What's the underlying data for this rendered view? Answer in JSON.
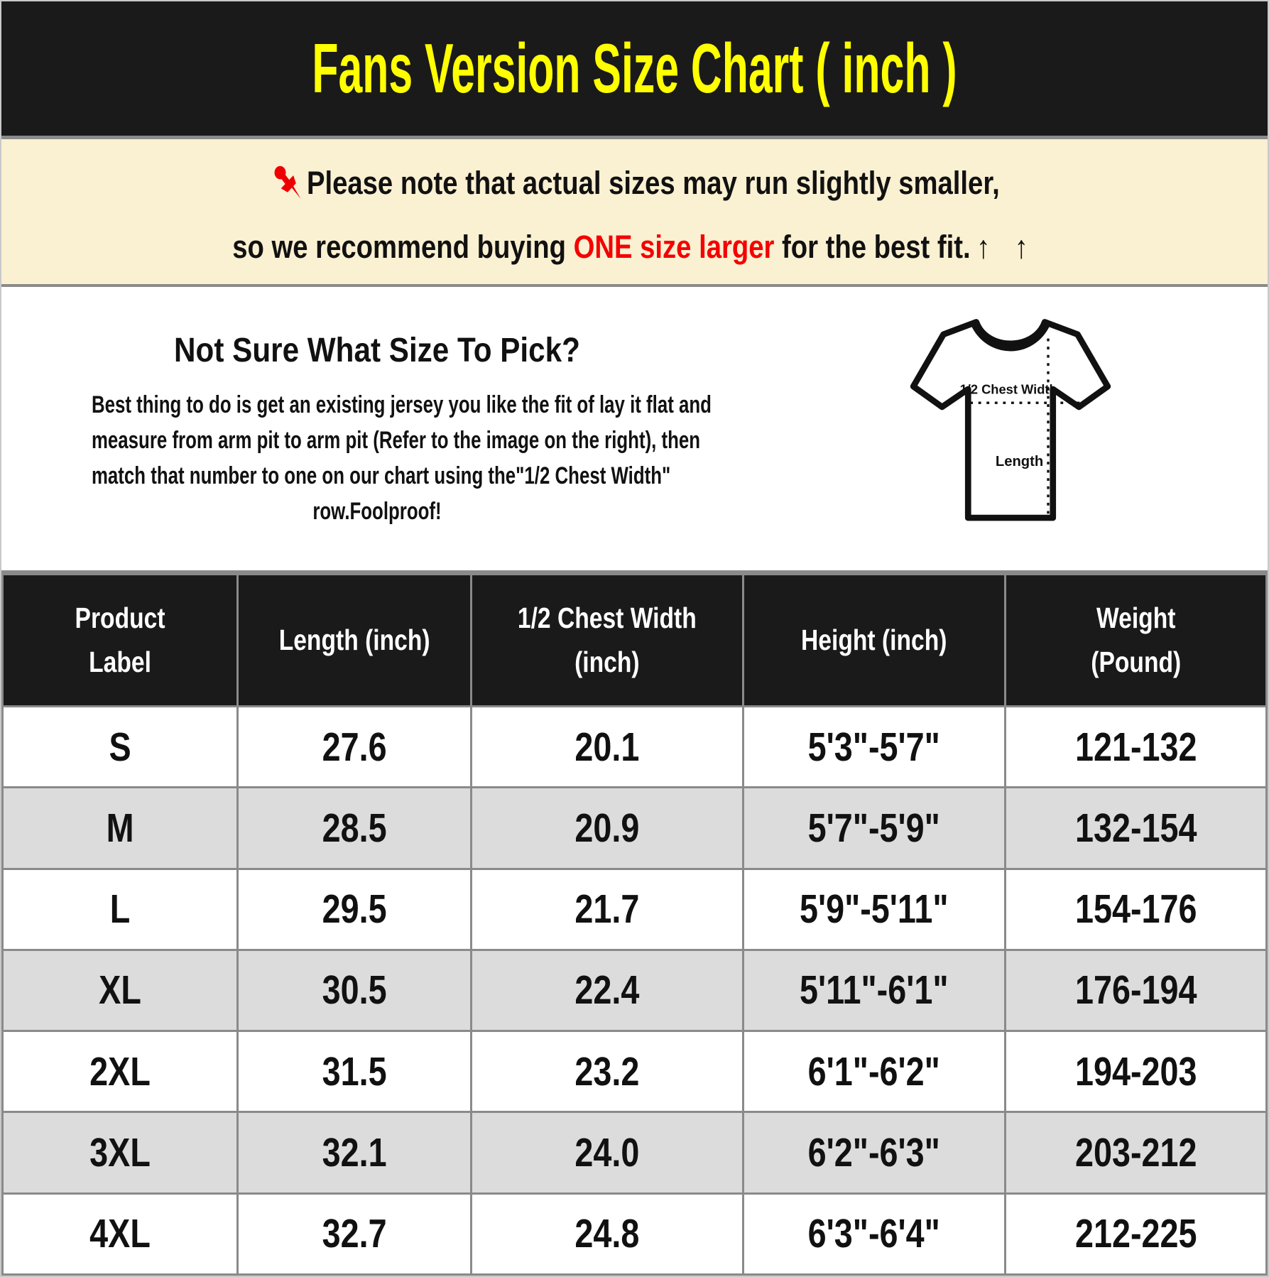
{
  "page": {
    "title": "Fans Version Size Chart ( inch )"
  },
  "colors": {
    "title_text": "#FFFF00",
    "title_bg": "#1A1A1A",
    "note_bg": "#FAF0D2",
    "highlight_red": "#F40000",
    "alt_row_gray": "#DCDCDC",
    "grid_gray": "#8A8A8A"
  },
  "note": {
    "pin_icon": "pushpin-icon",
    "line1": "Please note that actual sizes may run slightly smaller,",
    "line2_prefix": "so we recommend buying ",
    "line2_highlight": "ONE size larger",
    "line2_suffix": " for the best fit.",
    "arrows": "↑ ↑"
  },
  "guide": {
    "heading": "Not Sure What Size To Pick?",
    "body_lines": [
      "Best thing to do is get an existing jersey you like the fit of lay it flat and",
      "measure from arm pit to arm pit (Refer to the image on the right), then",
      "match that number to one on our chart using the\"1/2 Chest Width\"",
      "row.Foolproof!"
    ],
    "diagram": {
      "chest_label": "1/2 Chest Width",
      "length_label": "Length"
    }
  },
  "table": {
    "headers": [
      [
        "Product",
        "Label"
      ],
      [
        "Length (inch)"
      ],
      [
        "1/2 Chest Width",
        "(inch)"
      ],
      [
        "Height (inch)"
      ],
      [
        "Weight",
        "(Pound)"
      ]
    ],
    "col_widths_pct": [
      18.6,
      18.5,
      21.5,
      20.7,
      20.7
    ],
    "rows": [
      [
        "S",
        "27.6",
        "20.1",
        "5'3\"-5'7\"",
        "121-132"
      ],
      [
        "M",
        "28.5",
        "20.9",
        "5'7\"-5'9\"",
        "132-154"
      ],
      [
        "L",
        "29.5",
        "21.7",
        "5'9\"-5'11\"",
        "154-176"
      ],
      [
        "XL",
        "30.5",
        "22.4",
        "5'11\"-6'1\"",
        "176-194"
      ],
      [
        "2XL",
        "31.5",
        "23.2",
        "6'1\"-6'2\"",
        "194-203"
      ],
      [
        "3XL",
        "32.1",
        "24.0",
        "6'2\"-6'3\"",
        "203-212"
      ],
      [
        "4XL",
        "32.7",
        "24.8",
        "6'3\"-6'4\"",
        "212-225"
      ]
    ]
  }
}
